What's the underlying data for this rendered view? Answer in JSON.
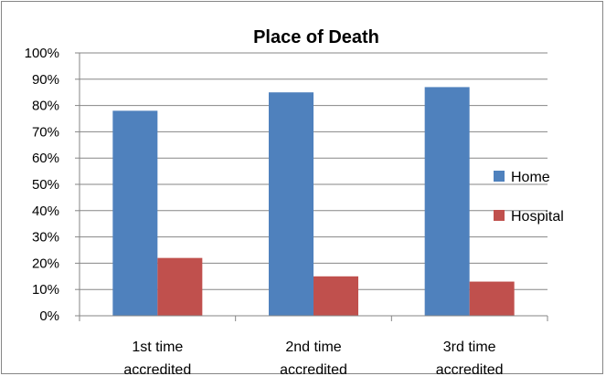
{
  "chart_data": {
    "type": "bar",
    "title": "Place of Death",
    "categories": [
      [
        "1st time",
        "accredited"
      ],
      [
        "2nd time",
        "accredited"
      ],
      [
        "3rd time",
        "accredited"
      ]
    ],
    "series": [
      {
        "name": "Home",
        "color": "#4F81BD",
        "values": [
          78,
          85,
          87
        ]
      },
      {
        "name": "Hospital",
        "color": "#C0504D",
        "values": [
          22,
          15,
          13
        ]
      }
    ],
    "y_ticks": [
      "0%",
      "10%",
      "20%",
      "30%",
      "40%",
      "50%",
      "60%",
      "70%",
      "80%",
      "90%",
      "100%"
    ],
    "ylim": [
      0,
      100
    ],
    "grid": true,
    "legend_position": "right"
  }
}
